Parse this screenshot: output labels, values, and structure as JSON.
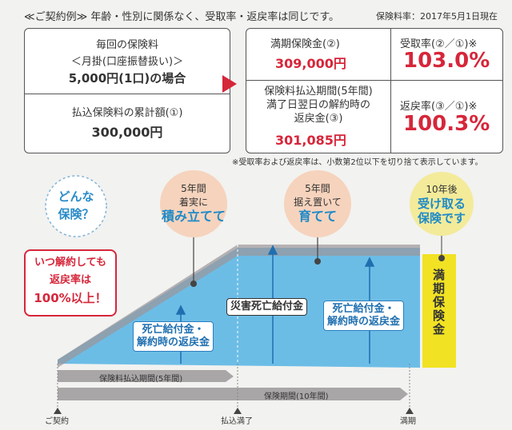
{
  "header": {
    "title": "≪ご契約例≫ 年齢・性別に関係なく、受取率・返戻率は同じです。",
    "date": "保険料率：2017年5月1日現在"
  },
  "premium": {
    "lines": [
      "毎回の保険料",
      "＜月掛(口座振替扱い)＞",
      "5,000円(1口)の場合"
    ],
    "total_label": "払込保険料の累計額(①)",
    "total_value": "300,000円"
  },
  "results": {
    "rows": [
      {
        "label": [
          "満期保険金(②)"
        ],
        "amount": "309,000円",
        "rate_label": "受取率(②／①)※",
        "rate": "103.0%"
      },
      {
        "label": [
          "保険料払込期間(5年間)",
          "満了日翌日の解約時の",
          "返戻金(③)"
        ],
        "amount": "301,085円",
        "rate_label": "返戻率(③／①)※",
        "rate": "100.3%"
      }
    ]
  },
  "note": "※受取率および返戻率は、小数第2位以下を切り捨て表示しています。",
  "diagram": {
    "question": [
      "どんな",
      "保険？"
    ],
    "phases": [
      {
        "lines": [
          "5年間",
          "着実に"
        ],
        "emphasis": "積み立てて"
      },
      {
        "lines": [
          "5年間",
          "据え置いて"
        ],
        "emphasis": "育てて"
      },
      {
        "lines": [
          "10年後"
        ],
        "emphasis": [
          "受け取る",
          "保険です"
        ]
      }
    ],
    "callout": [
      "いつ解約しても",
      "返戻率は",
      "100%以上！"
    ],
    "labels": [
      [
        "死亡給付金・",
        "解約時の返戻金"
      ],
      [
        "災害死亡給付金"
      ],
      [
        "死亡給付金・",
        "解約時の返戻金"
      ]
    ],
    "maturity": "満期保険金",
    "periods": [
      "保険料払込期間(5年間)",
      "保険期間(10年間)"
    ],
    "milestones": [
      "ご契約",
      "払込満了",
      "満期"
    ]
  }
}
